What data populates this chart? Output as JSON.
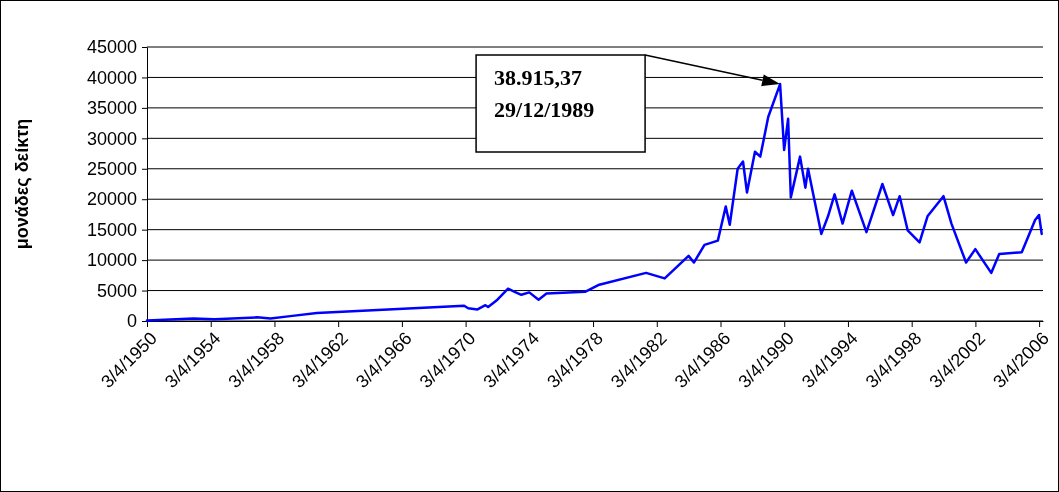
{
  "chart_data": {
    "type": "line",
    "ylabel": "μονάδες δείκτη",
    "x": [
      "1950-04-03",
      "1953-03",
      "1954-07",
      "1957-03",
      "1958-01",
      "1959-04",
      "1960-12",
      "1970-03",
      "1970-06",
      "1971-01",
      "1971-07",
      "1971-09",
      "1972-04",
      "1972-12",
      "1973-05",
      "1973-10",
      "1974-04",
      "1974-11",
      "1975-05",
      "1977-10",
      "1978-08",
      "1981-08",
      "1982-10",
      "1984-04",
      "1984-08",
      "1985-04",
      "1986-02",
      "1986-08",
      "1986-11",
      "1987-05",
      "1987-09",
      "1987-12",
      "1988-06",
      "1988-10",
      "1989-04",
      "1989-12-29",
      "1990-04",
      "1990-07",
      "1990-09",
      "1991-04",
      "1991-08",
      "1991-10",
      "1992-08",
      "1993-01",
      "1993-06",
      "1993-12",
      "1994-07",
      "1995-06",
      "1996-06",
      "1997-02",
      "1997-07",
      "1998-01",
      "1998-10",
      "1999-04",
      "2000-04",
      "2000-10",
      "2001-09",
      "2002-04",
      "2003-04",
      "2003-10",
      "2005-03",
      "2006-01",
      "2006-04",
      "2006-06"
    ],
    "series": [
      {
        "color": "#0000ff",
        "values": [
          100,
          400,
          300,
          600,
          400,
          800,
          1300,
          2500,
          2100,
          1900,
          2600,
          2300,
          3500,
          5300,
          4800,
          4300,
          4700,
          3500,
          4500,
          4800,
          5900,
          7900,
          7000,
          10700,
          9600,
          12500,
          13200,
          18800,
          15800,
          25000,
          26200,
          21100,
          27800,
          27000,
          33500,
          38915.37,
          28100,
          33200,
          20300,
          27000,
          21900,
          25000,
          14300,
          17200,
          20800,
          16000,
          21400,
          14600,
          22500,
          17400,
          20500,
          14900,
          12900,
          17200,
          20500,
          16000,
          9600,
          11800,
          7900,
          11000,
          11300,
          16600,
          17400,
          14300
        ]
      }
    ],
    "xlim": [
      "1950-04-03",
      "2006-07-01"
    ],
    "xticks": [
      {
        "value": "1950-04-03",
        "label": "3/4/1950"
      },
      {
        "value": "1954-04-03",
        "label": "3/4/1954"
      },
      {
        "value": "1958-04-03",
        "label": "3/4/1958"
      },
      {
        "value": "1962-04-03",
        "label": "3/4/1962"
      },
      {
        "value": "1966-04-03",
        "label": "3/4/1966"
      },
      {
        "value": "1970-04-03",
        "label": "3/4/1970"
      },
      {
        "value": "1974-04-03",
        "label": "3/4/1974"
      },
      {
        "value": "1978-04-03",
        "label": "3/4/1978"
      },
      {
        "value": "1982-04-03",
        "label": "3/4/1982"
      },
      {
        "value": "1986-04-03",
        "label": "3/4/1986"
      },
      {
        "value": "1990-04-03",
        "label": "3/4/1990"
      },
      {
        "value": "1994-04-03",
        "label": "3/4/1994"
      },
      {
        "value": "1998-04-03",
        "label": "3/4/1998"
      },
      {
        "value": "2002-04-03",
        "label": "3/4/2002"
      },
      {
        "value": "2006-04-03",
        "label": "3/4/2006"
      }
    ],
    "ylim": [
      0,
      45000
    ],
    "yticks": [
      0,
      5000,
      10000,
      15000,
      20000,
      25000,
      30000,
      35000,
      40000,
      45000
    ],
    "grid": "y",
    "marker": "none",
    "line_style": "solid",
    "annotations": [
      "38.915,37\n29/12/1989"
    ]
  }
}
